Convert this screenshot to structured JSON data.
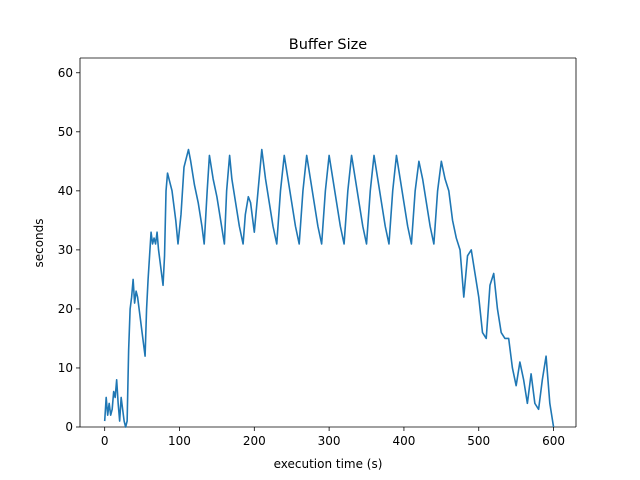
{
  "chart_data": {
    "type": "line",
    "title": "Buffer Size",
    "xlabel": "execution time (s)",
    "ylabel": "seconds",
    "xlim": [
      -33,
      630
    ],
    "ylim": [
      0,
      62.5
    ],
    "xticks": [
      0,
      100,
      200,
      300,
      400,
      500,
      600
    ],
    "yticks": [
      0,
      10,
      20,
      30,
      40,
      50,
      60
    ],
    "grid": false,
    "color": "#1f77b4",
    "series": [
      {
        "x": [
          0,
          2,
          4,
          6,
          8,
          10,
          12,
          14,
          16,
          18,
          20,
          22,
          24,
          26,
          28,
          30,
          32,
          34,
          36,
          38,
          40,
          42,
          44,
          46,
          48,
          50,
          52,
          54,
          56,
          58,
          60,
          62,
          64,
          66,
          68,
          70,
          72,
          74,
          76,
          78,
          80,
          82,
          84,
          86,
          88,
          90,
          92,
          95,
          98,
          102,
          106,
          112,
          115,
          120,
          125,
          130,
          133,
          137,
          140,
          145,
          150,
          155,
          160,
          163,
          167,
          170,
          175,
          180,
          185,
          188,
          192,
          195,
          200,
          205,
          210,
          215,
          220,
          225,
          230,
          235,
          240,
          245,
          250,
          255,
          260,
          265,
          270,
          275,
          280,
          285,
          290,
          295,
          300,
          305,
          310,
          315,
          320,
          325,
          330,
          335,
          340,
          345,
          350,
          355,
          360,
          365,
          370,
          375,
          380,
          385,
          390,
          395,
          400,
          405,
          410,
          415,
          420,
          425,
          430,
          435,
          440,
          445,
          450,
          455,
          460,
          465,
          470,
          475,
          480,
          485,
          490,
          495,
          500,
          505,
          510,
          515,
          520,
          525,
          530,
          535,
          540,
          545,
          550,
          555,
          560,
          565,
          570,
          575,
          580,
          585,
          590,
          595,
          600
        ],
        "y": [
          1,
          5,
          2,
          4,
          2,
          3,
          6,
          5,
          8,
          4,
          1,
          5,
          3,
          1,
          0,
          1,
          13,
          20,
          22,
          25,
          21,
          23,
          22,
          20,
          18,
          16,
          14,
          12,
          20,
          25,
          29,
          33,
          31,
          32,
          31,
          33,
          30,
          28,
          26,
          24,
          29,
          40,
          43,
          42,
          41,
          40,
          38,
          35,
          31,
          36,
          44,
          47,
          45,
          41,
          38,
          34,
          31,
          40,
          46,
          42,
          39,
          35,
          31,
          40,
          46,
          42,
          38,
          34,
          31,
          36,
          39,
          38,
          33,
          40,
          47,
          42,
          38,
          34,
          31,
          40,
          46,
          42,
          38,
          34,
          31,
          40,
          46,
          42,
          38,
          34,
          31,
          40,
          46,
          42,
          38,
          34,
          31,
          40,
          46,
          42,
          38,
          34,
          31,
          40,
          46,
          42,
          38,
          34,
          31,
          40,
          46,
          42,
          38,
          34,
          31,
          40,
          45,
          42,
          38,
          34,
          31,
          40,
          45,
          42,
          40,
          35,
          32,
          30,
          22,
          29,
          30,
          26,
          22,
          16,
          15,
          24,
          26,
          20,
          16,
          15,
          15,
          10,
          7,
          11,
          8,
          4,
          9,
          4,
          3,
          8,
          12,
          4,
          0
        ]
      }
    ]
  }
}
